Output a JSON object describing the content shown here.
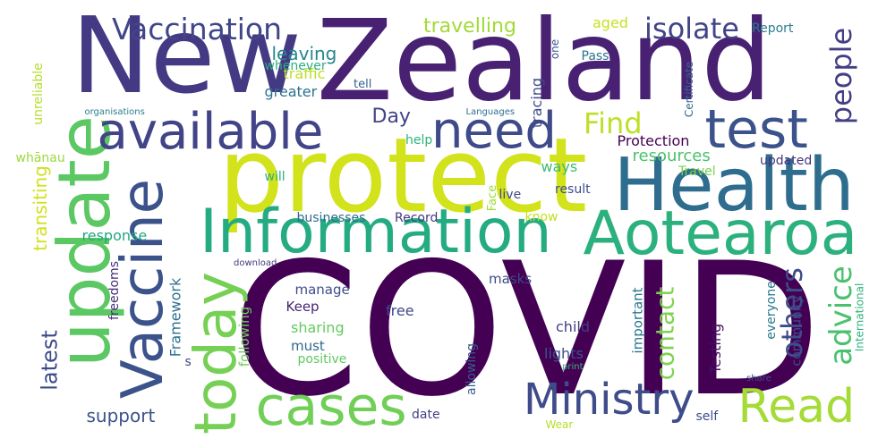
{
  "words": [
    {
      "text": "New",
      "color": "#443983"
    },
    {
      "text": "Zealand",
      "color": "#482173"
    },
    {
      "text": "COVID",
      "color": "#440154"
    },
    {
      "text": "protect",
      "color": "#d2e21b"
    },
    {
      "text": "Health",
      "color": "#2e6d8e"
    },
    {
      "text": "Information",
      "color": "#25ab82"
    },
    {
      "text": "Aotearoa",
      "color": "#2cb17e"
    },
    {
      "text": "update",
      "color": "#5cc863"
    },
    {
      "text": "Vaccine",
      "color": "#3b528b"
    },
    {
      "text": "available",
      "color": "#414487"
    },
    {
      "text": "need",
      "color": "#3e4a89"
    },
    {
      "text": "test",
      "color": "#3b528b"
    },
    {
      "text": "today",
      "color": "#75d054"
    },
    {
      "text": "cases",
      "color": "#70cf57"
    },
    {
      "text": "Read",
      "color": "#a5db36"
    },
    {
      "text": "Ministry",
      "color": "#3e4c8a"
    },
    {
      "text": "Vaccination",
      "color": "#404688"
    },
    {
      "text": "isolate",
      "color": "#414487"
    },
    {
      "text": "people",
      "color": "#433e85"
    },
    {
      "text": "others",
      "color": "#3e4c8a"
    },
    {
      "text": "advice",
      "color": "#4ac16d"
    },
    {
      "text": "contact",
      "color": "#7fd34e"
    },
    {
      "text": "Find",
      "color": "#bddf26"
    },
    {
      "text": "travelling",
      "color": "#a2da37"
    },
    {
      "text": "leaving",
      "color": "#24878e"
    },
    {
      "text": "traffic",
      "color": "#bddf26"
    },
    {
      "text": "whenever",
      "color": "#2ab07f"
    },
    {
      "text": "greater",
      "color": "#2d708e"
    },
    {
      "text": "tell",
      "color": "#33628d"
    },
    {
      "text": "aged",
      "color": "#c8e020"
    },
    {
      "text": "one",
      "color": "#3b528b"
    },
    {
      "text": "Pass",
      "color": "#2c728e"
    },
    {
      "text": "Report",
      "color": "#287d8e"
    },
    {
      "text": "Certificate",
      "color": "#31688e"
    },
    {
      "text": "tracing",
      "color": "#3e4c8a"
    },
    {
      "text": "Languages",
      "color": "#2d708e"
    },
    {
      "text": "organisations",
      "color": "#287d8e"
    },
    {
      "text": "unreliable",
      "color": "#b5de2b"
    },
    {
      "text": "transiting",
      "color": "#d0e11c"
    },
    {
      "text": "latest",
      "color": "#3e4a89"
    },
    {
      "text": "whānau",
      "color": "#9bd93c"
    },
    {
      "text": "Day",
      "color": "#414487"
    },
    {
      "text": "help",
      "color": "#2db27d"
    },
    {
      "text": "Protection",
      "color": "#440154"
    },
    {
      "text": "resources",
      "color": "#4ac16d"
    },
    {
      "text": "ways",
      "color": "#3dbc74"
    },
    {
      "text": "updated",
      "color": "#46327e"
    },
    {
      "text": "Travel",
      "color": "#7ad151"
    },
    {
      "text": "result",
      "color": "#3d4d8a"
    },
    {
      "text": "live",
      "color": "#3e4a89"
    },
    {
      "text": "will",
      "color": "#2ab07f"
    },
    {
      "text": "Face",
      "color": "#9fda3a"
    },
    {
      "text": "know",
      "color": "#c5e021"
    },
    {
      "text": "businesses",
      "color": "#2f6b8e"
    },
    {
      "text": "Record",
      "color": "#453581"
    },
    {
      "text": "response",
      "color": "#22a884"
    },
    {
      "text": "download",
      "color": "#453882"
    },
    {
      "text": "freedoms",
      "color": "#472c7a"
    },
    {
      "text": "Framework",
      "color": "#2d708e"
    },
    {
      "text": "manage",
      "color": "#3e4c8a"
    },
    {
      "text": "Keep",
      "color": "#482475"
    },
    {
      "text": "sharing",
      "color": "#62cb5f"
    },
    {
      "text": "must",
      "color": "#31688e"
    },
    {
      "text": "positive",
      "color": "#5ec962"
    },
    {
      "text": "masks",
      "color": "#3e4a89"
    },
    {
      "text": "free",
      "color": "#3e4989"
    },
    {
      "text": "child",
      "color": "#433e85"
    },
    {
      "text": "lights",
      "color": "#3b528b"
    },
    {
      "text": "important",
      "color": "#2a788e"
    },
    {
      "text": "allowing",
      "color": "#365d8d"
    },
    {
      "text": "Testing",
      "color": "#471063"
    },
    {
      "text": "everyone",
      "color": "#2a788e"
    },
    {
      "text": "community",
      "color": "#3c4f8a"
    },
    {
      "text": "International",
      "color": "#2db27d"
    },
    {
      "text": "following",
      "color": "#6ccd5a"
    },
    {
      "text": "s",
      "color": "#414487"
    },
    {
      "text": "print",
      "color": "#34b679"
    },
    {
      "text": "share",
      "color": "#3e4c8a"
    },
    {
      "text": "support",
      "color": "#3b528b"
    },
    {
      "text": "date",
      "color": "#433e85"
    },
    {
      "text": "Wear",
      "color": "#b5de2b"
    },
    {
      "text": "self",
      "color": "#3e4c8a"
    }
  ]
}
